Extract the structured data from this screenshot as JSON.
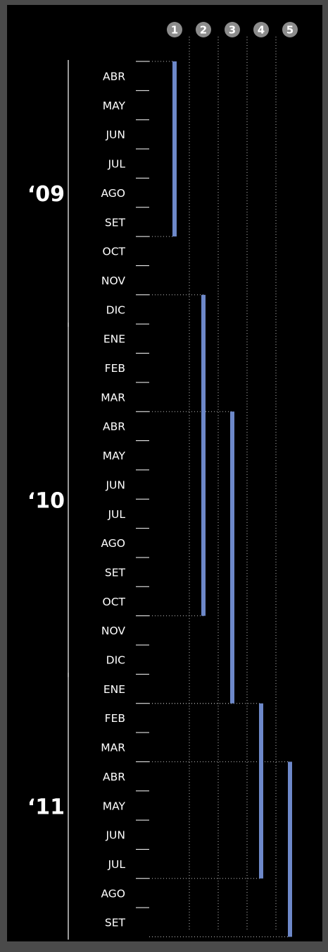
{
  "colors": {
    "background": "#000000",
    "frame": "#4a4a4a",
    "bar": "#6d88c9",
    "text": "#ffffff",
    "badge": "#8c8c8c",
    "guide": "#bbbbbb"
  },
  "chart_data": {
    "type": "gantt",
    "months": [
      "ABR",
      "MAY",
      "JUN",
      "JUL",
      "AGO",
      "SET",
      "OCT",
      "NOV",
      "DIC",
      "ENE",
      "FEB",
      "MAR",
      "ABR",
      "MAY",
      "JUN",
      "JUL",
      "AGO",
      "SET",
      "OCT",
      "NOV",
      "DIC",
      "ENE",
      "FEB",
      "MAR",
      "ABR",
      "MAY",
      "JUN",
      "JUL",
      "AGO",
      "SET"
    ],
    "years": [
      {
        "label": "‘09",
        "start": 0,
        "end": 8
      },
      {
        "label": "‘10",
        "start": 9,
        "end": 20
      },
      {
        "label": "‘11",
        "start": 21,
        "end": 29
      }
    ],
    "columns": [
      "1",
      "2",
      "3",
      "4",
      "5"
    ],
    "tasks": [
      {
        "column": "1",
        "start": 0,
        "end": 5
      },
      {
        "column": "2",
        "start": 8,
        "end": 18
      },
      {
        "column": "3",
        "start": 12,
        "end": 21
      },
      {
        "column": "4",
        "start": 22,
        "end": 27
      },
      {
        "column": "5",
        "start": 24,
        "end": 29
      }
    ]
  }
}
